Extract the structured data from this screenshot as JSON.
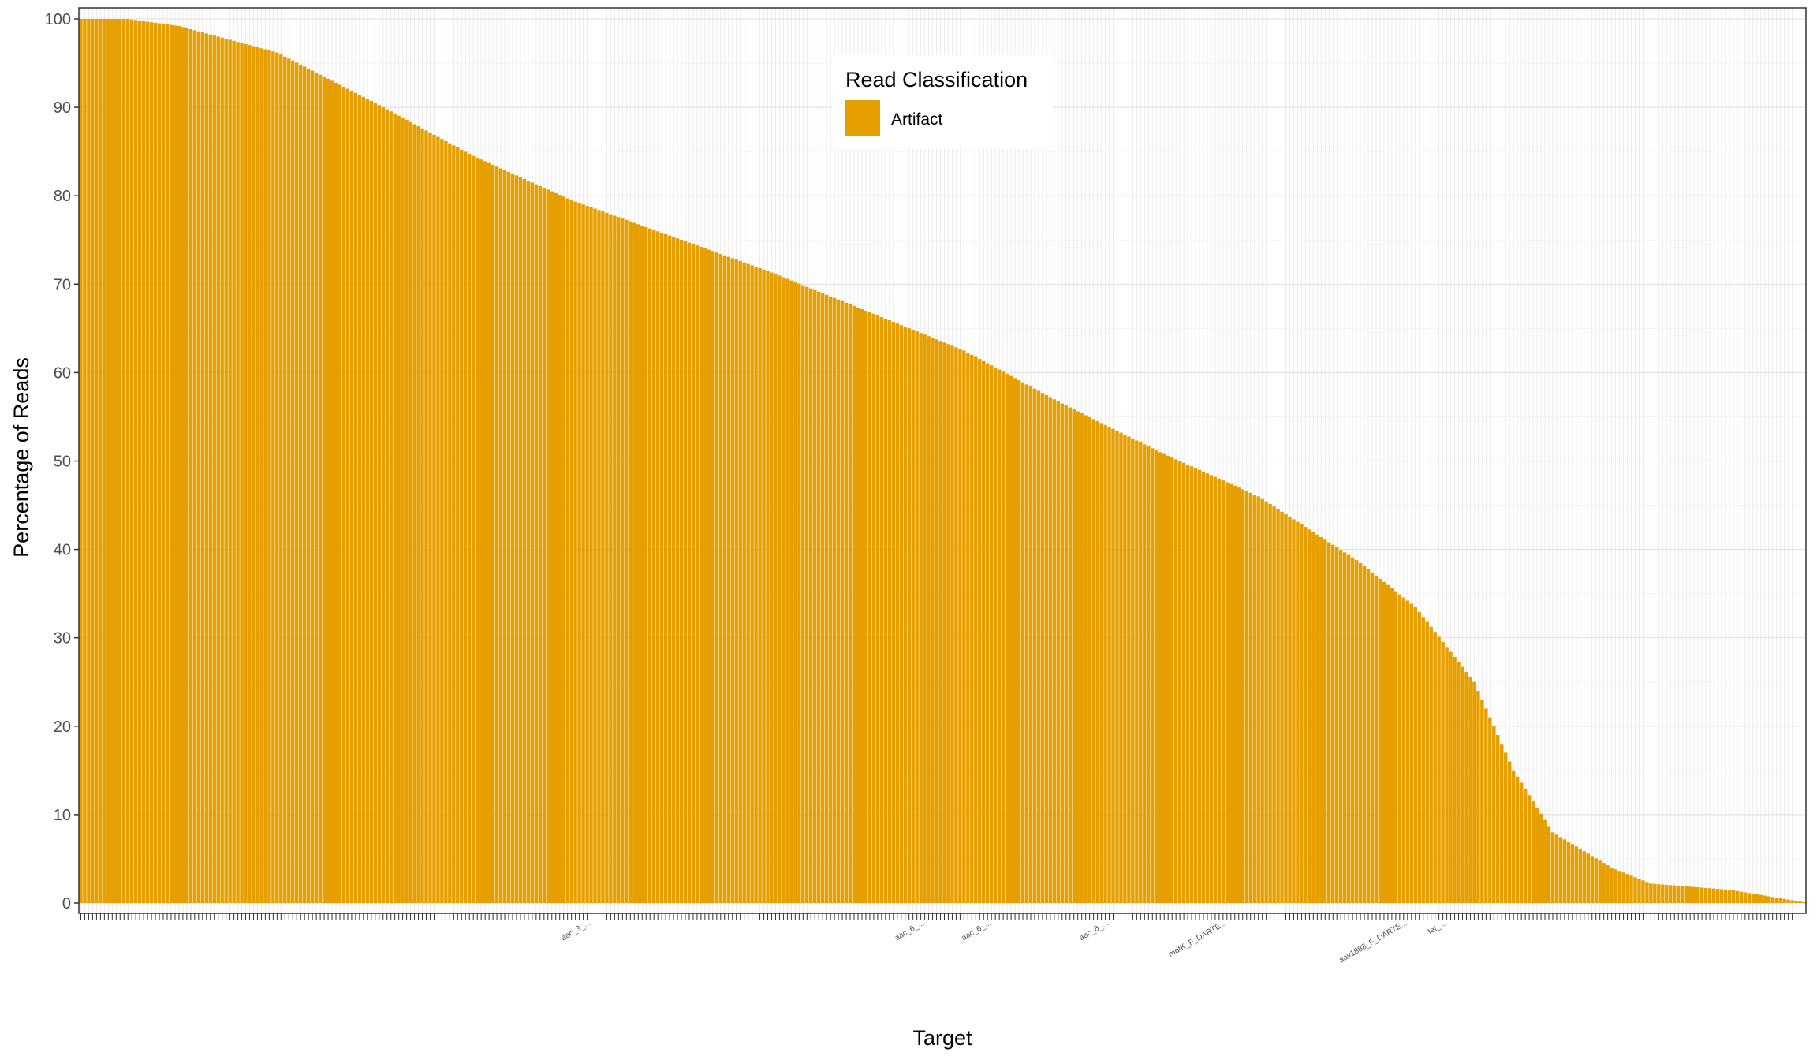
{
  "chart_data": {
    "type": "bar",
    "xlabel": "Target",
    "ylabel": "Percentage of Reads",
    "ylim": [
      0,
      100
    ],
    "y_ticks": [
      0,
      10,
      20,
      30,
      40,
      50,
      60,
      70,
      80,
      90,
      100
    ],
    "grid": true,
    "legend": {
      "title": "Read Classification",
      "placement": "top-center",
      "entries": [
        {
          "name": "Artifact",
          "color": "#E69F00"
        }
      ]
    },
    "series": [
      {
        "name": "Artifact",
        "color": "#E69F00"
      }
    ],
    "profile": {
      "bar_count": 440,
      "keypoints": [
        [
          0,
          100
        ],
        [
          12,
          100
        ],
        [
          25,
          99.2
        ],
        [
          50,
          96.2
        ],
        [
          75,
          90.5
        ],
        [
          100,
          84.5
        ],
        [
          125,
          79.5
        ],
        [
          150,
          75.5
        ],
        [
          175,
          71.5
        ],
        [
          200,
          67.0
        ],
        [
          225,
          62.5
        ],
        [
          250,
          56.5
        ],
        [
          275,
          51.0
        ],
        [
          300,
          46.0
        ],
        [
          325,
          38.8
        ],
        [
          340,
          33.5
        ],
        [
          355,
          25.0
        ],
        [
          365,
          15.0
        ],
        [
          375,
          8.0
        ],
        [
          390,
          4.0
        ],
        [
          400,
          2.2
        ],
        [
          420,
          1.5
        ],
        [
          439,
          0.1
        ]
      ]
    },
    "visible_tick_labels": [
      "aac_3_...",
      "aac_6_...",
      "aac_6_...",
      "aac_6_...",
      "mdtK_F_DARTE...",
      "aav1888_F_DARTE...",
      "tet_..."
    ]
  }
}
